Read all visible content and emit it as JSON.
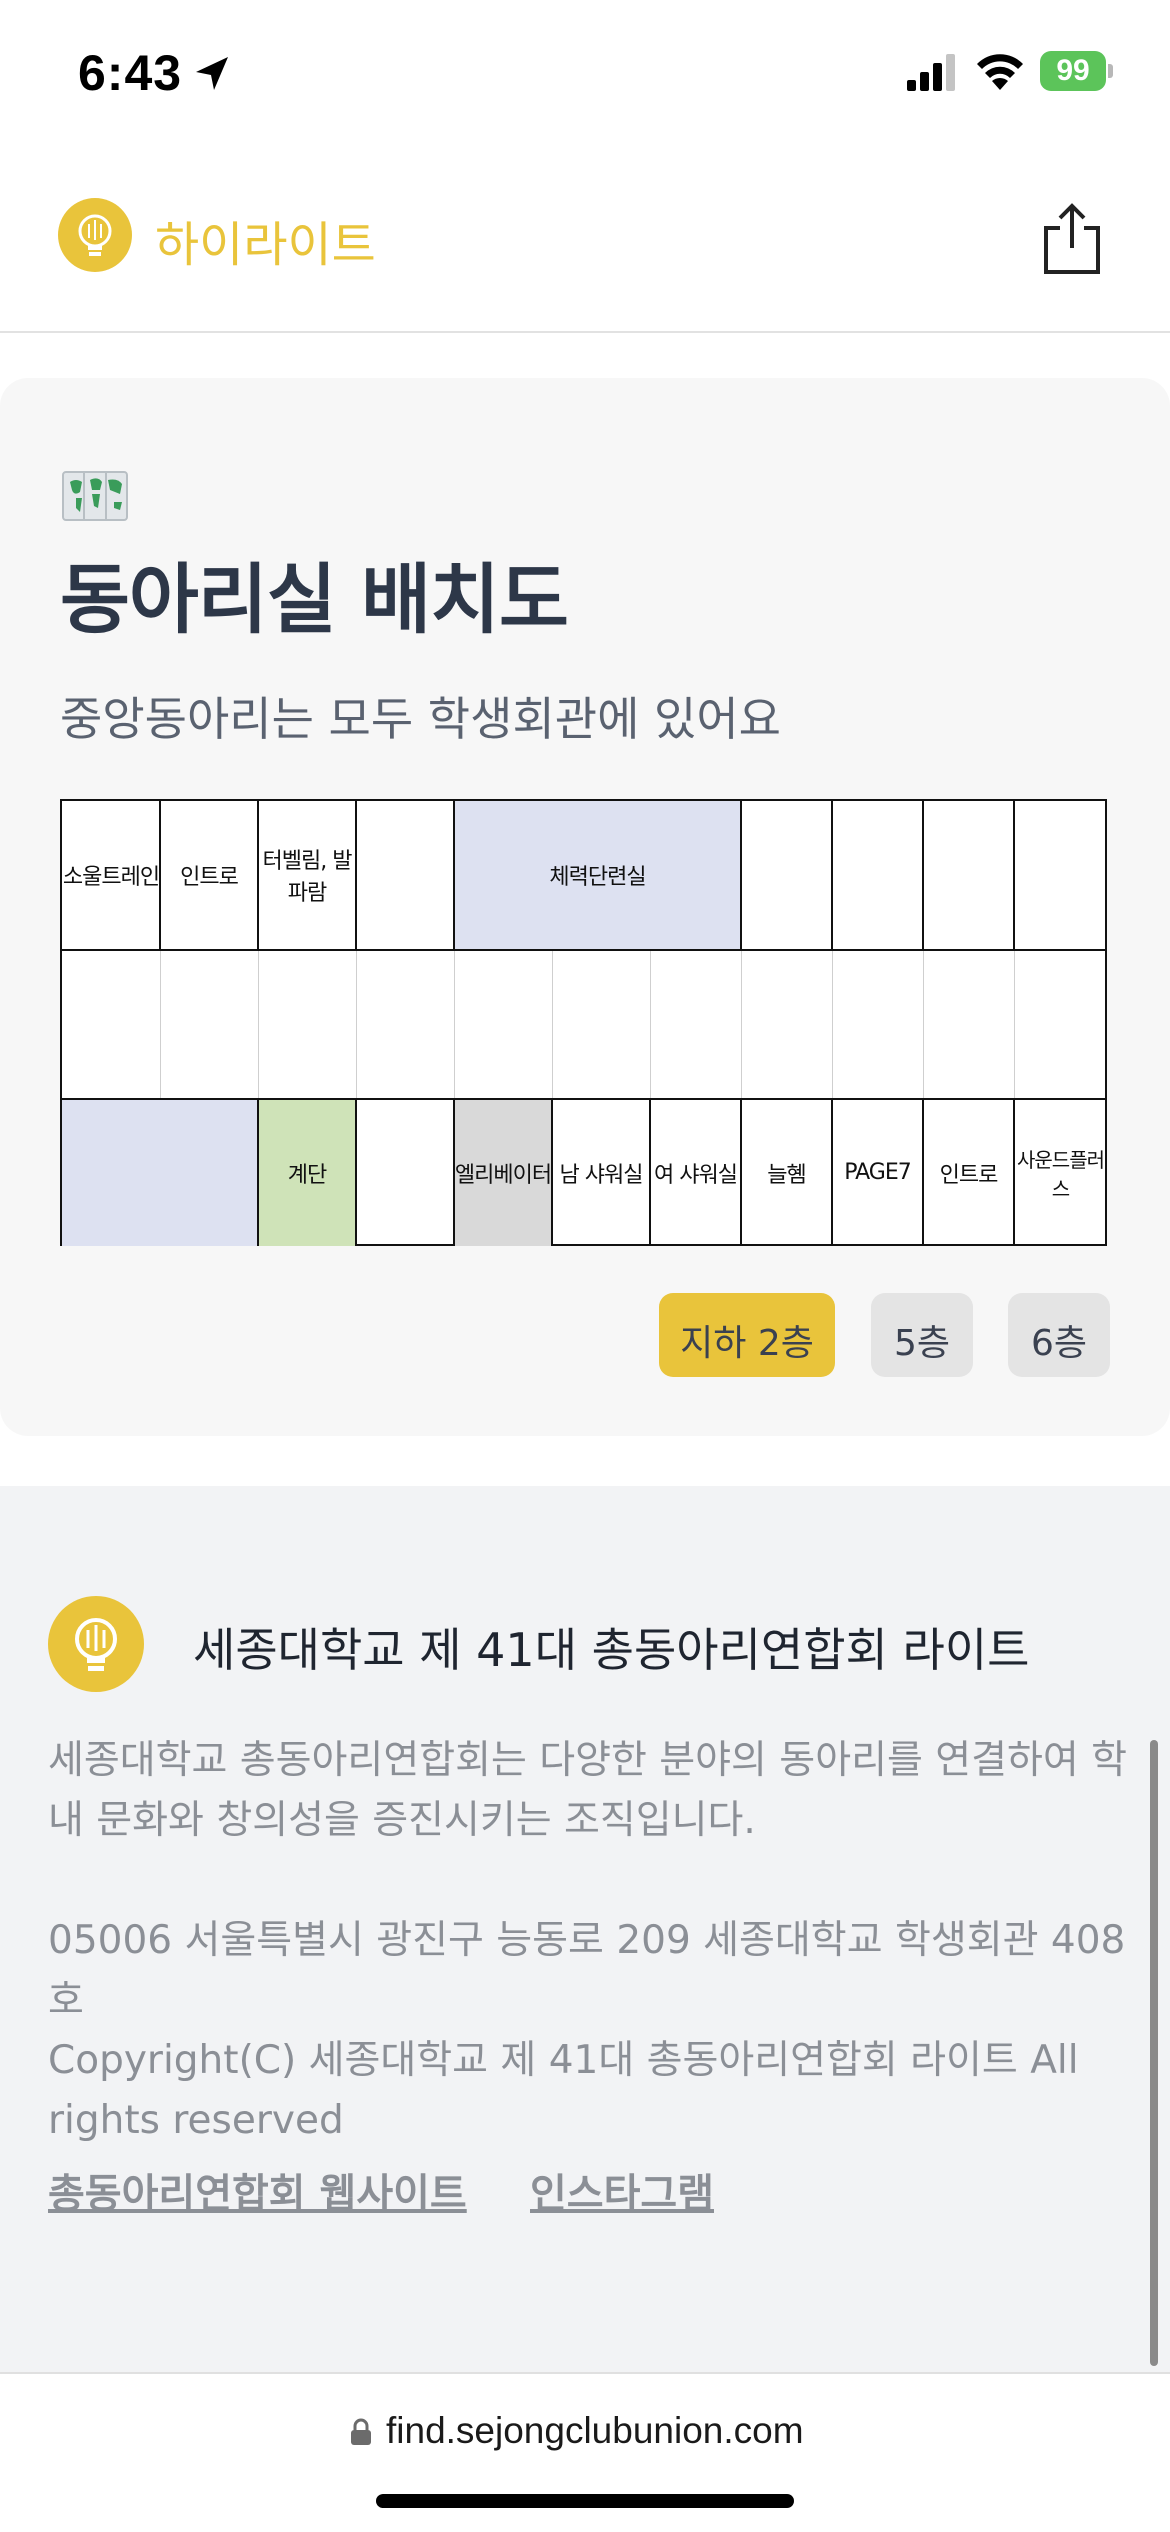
{
  "status_bar": {
    "time": "6:43",
    "battery": "99"
  },
  "header": {
    "brand": "하이라이트"
  },
  "card": {
    "title": "동아리실 배치도",
    "subtitle": "중앙동아리는 모두 학생회관에 있어요",
    "floor_plan": {
      "top_row": [
        "소울트레인",
        "인트로",
        "터벨림, 발파람",
        "",
        "체력단련실",
        "",
        "",
        "",
        ""
      ],
      "middle_row": [],
      "bottom_row": [
        "",
        "계단",
        "",
        "엘리베이터",
        "남 샤워실",
        "여 샤워실",
        "늘혬",
        "PAGE7",
        "인트로",
        "사운드플러스"
      ],
      "colors": {
        "room_blue": "#dde1f1",
        "stairs_green": "#cfe3b8",
        "elevator_gray": "#d9d9d9"
      }
    },
    "floor_tabs": [
      {
        "label": "지하 2층",
        "active": true
      },
      {
        "label": "5층",
        "active": false
      },
      {
        "label": "6층",
        "active": false
      }
    ]
  },
  "footer": {
    "org_name": "세종대학교 제 41대 총동아리연합회 라이트",
    "description": "세종대학교 총동아리연합회는 다양한 분야의 동아리를 연결하여 학내 문화와 창의성을 증진시키는 조직입니다.",
    "address": "05006 서울특별시 광진구 능동로 209 세종대학교 학생회관 408호",
    "copyright": "Copyright(C) 세종대학교 제 41대 총동아리연합회 라이트 All rights reserved",
    "links": [
      "총동아리연합회 웹사이트",
      "인스타그램"
    ]
  },
  "url_bar": {
    "url": "find.sejongclubunion.com"
  },
  "colors": {
    "brand_yellow": "#e9c43b",
    "card_bg": "#f7f7f7",
    "footer_bg": "#f2f3f5"
  }
}
